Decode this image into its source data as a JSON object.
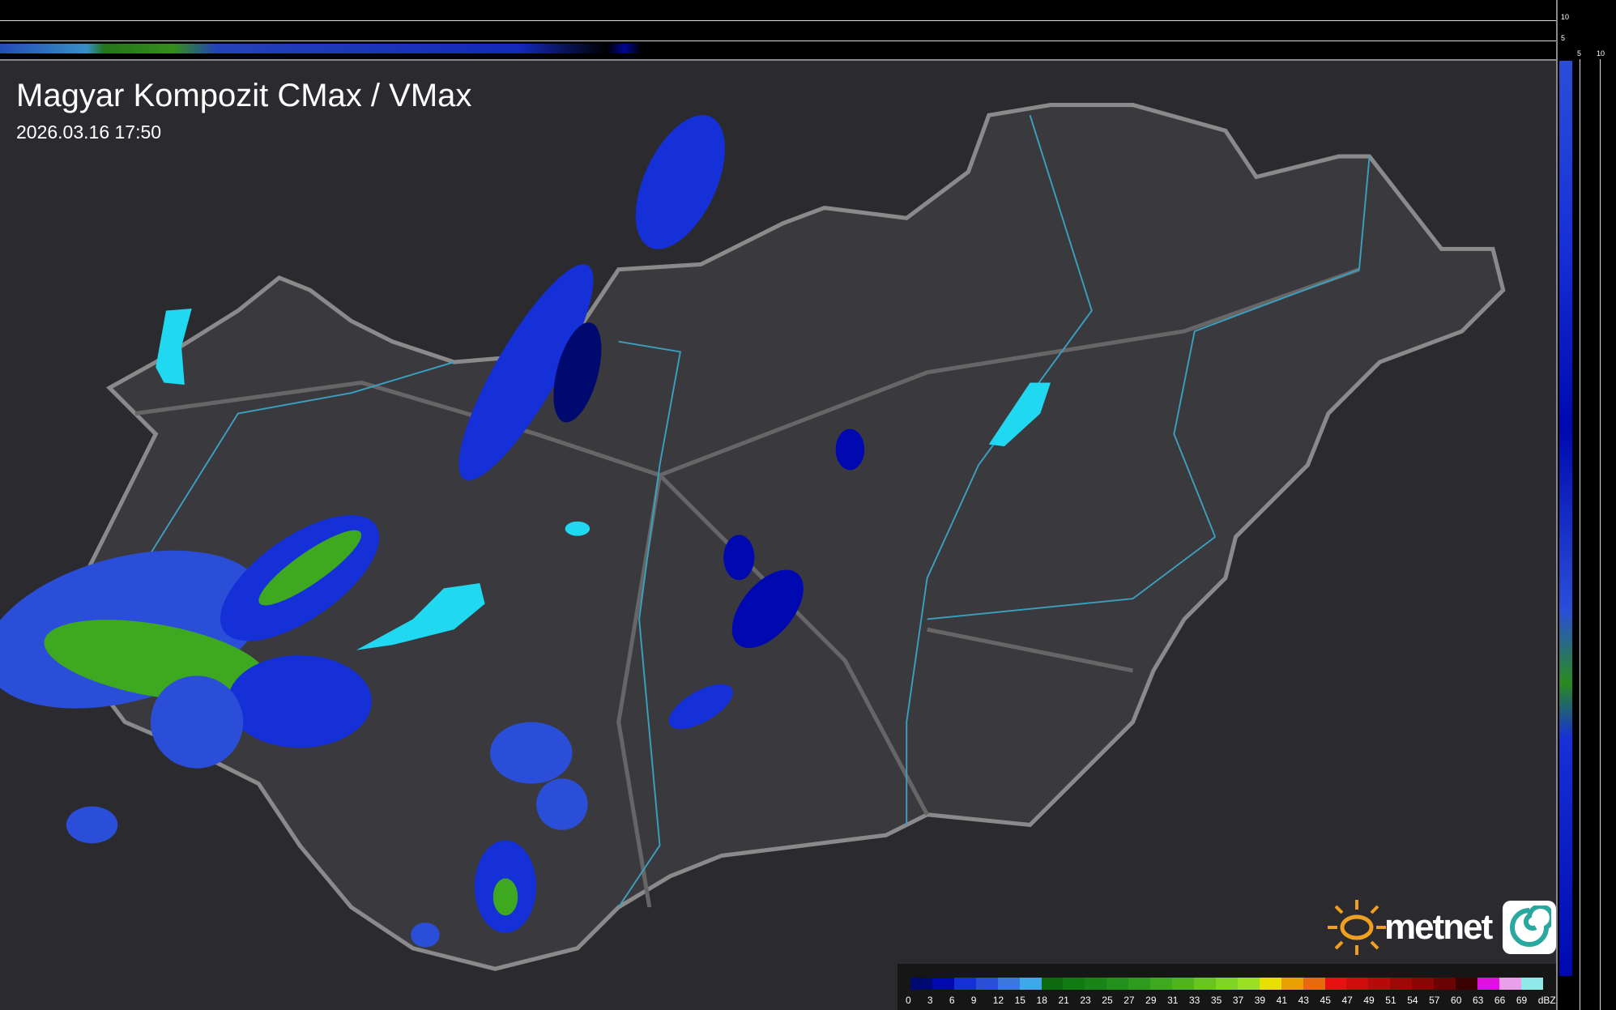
{
  "title": "Magyar Kompozit CMax / VMax",
  "timestamp": "2026.03.16 17:50",
  "profile_axes": {
    "vertical_ticks": [
      "10",
      "5"
    ],
    "horizontal_ticks": [
      "5",
      "10"
    ]
  },
  "legend": {
    "unit": "dBZ",
    "labels": [
      "0",
      "3",
      "6",
      "9",
      "12",
      "15",
      "18",
      "21",
      "23",
      "25",
      "27",
      "29",
      "31",
      "33",
      "35",
      "37",
      "39",
      "41",
      "43",
      "45",
      "47",
      "49",
      "51",
      "54",
      "57",
      "60",
      "63",
      "66",
      "69"
    ],
    "colors": [
      "#000a6e",
      "#0008b0",
      "#1630d8",
      "#2a4ed8",
      "#3a78e0",
      "#40a8e8",
      "#0e6a10",
      "#127a12",
      "#1a8418",
      "#22901c",
      "#2e9a1e",
      "#3ea820",
      "#50b420",
      "#68c420",
      "#80d424",
      "#98e020",
      "#e8e000",
      "#e8a000",
      "#e86a10",
      "#e81010",
      "#d00c0c",
      "#b80a0a",
      "#a00808",
      "#880606",
      "#6a0404",
      "#3a0202",
      "#e010e0",
      "#e8a0e8",
      "#90e8e8"
    ]
  },
  "logo": {
    "text": "metnet",
    "sun_color": "#f0a020",
    "swirl_color": "#2aa8a0"
  },
  "colors": {
    "background": "#2b2b2f",
    "country": "#3a3a3e",
    "border": "#8a8a8a",
    "rivers": "#3aa0c0",
    "lakes": "#20d8f0"
  }
}
